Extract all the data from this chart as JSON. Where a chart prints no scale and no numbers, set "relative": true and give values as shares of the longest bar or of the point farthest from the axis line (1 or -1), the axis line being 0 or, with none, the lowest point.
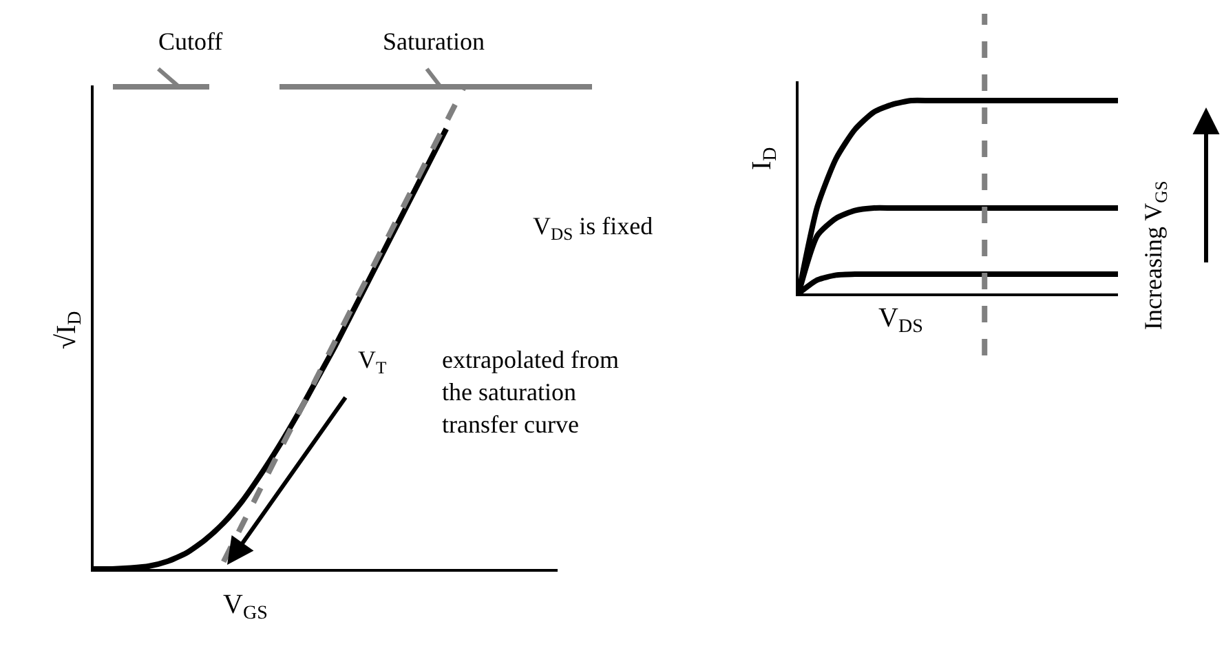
{
  "chart_data": [
    {
      "type": "line",
      "relative": true,
      "xlabel": "V$_{GS}$",
      "ylabel": "√I$_{D}$",
      "marker": "none",
      "categories": [
        null,
        null,
        null,
        null,
        null,
        null,
        null,
        null,
        null,
        null,
        null,
        null,
        null,
        null,
        null,
        null,
        null,
        null,
        null,
        null,
        null,
        null,
        null,
        null,
        null,
        null
      ],
      "series": [
        {
          "color": "#000000",
          "line_style": "solid",
          "values": [
            0,
            0,
            0.002,
            0.006,
            0.016,
            0.033,
            0.06,
            0.095,
            0.14,
            0.195,
            0.255,
            0.32,
            0.39,
            0.46,
            0.535,
            0.61,
            0.685,
            0.76,
            0.835,
            0.91,
            null,
            null,
            null,
            null,
            null,
            null
          ]
        },
        {
          "color": "#808080",
          "line_style": "dashed",
          "values": [
            null,
            null,
            null,
            null,
            null,
            null,
            null,
            0.015,
            0.091,
            0.167,
            0.243,
            0.318,
            0.394,
            0.47,
            0.546,
            0.621,
            0.697,
            0.773,
            0.849,
            0.924,
            1.0,
            null,
            null,
            null,
            null,
            null
          ]
        }
      ],
      "annotations": [
        "Cutoff",
        "Saturation",
        "V$_{DS}$ is fixed",
        "V$_{T}$",
        "extrapolated from\nthe saturation\ntransfer curve"
      ]
    },
    {
      "type": "line",
      "relative": true,
      "xlabel": "V$_{DS}$",
      "ylabel": "I$_{D}$",
      "marker": "none",
      "categories": [
        null,
        null,
        null,
        null,
        null,
        null,
        null,
        null,
        null,
        null,
        null,
        null,
        null,
        null,
        null,
        null,
        null,
        null
      ],
      "series": [
        {
          "color": "#000000",
          "values": [
            0,
            0.45,
            0.7,
            0.85,
            0.94,
            0.98,
            1.0,
            1.0,
            1.0,
            1.0,
            1.0,
            1.0,
            1.0,
            1.0,
            1.0,
            1.0,
            1.0,
            1.0
          ]
        },
        {
          "color": "#000000",
          "values": [
            0,
            0.3,
            0.39,
            0.43,
            0.443,
            0.443,
            0.443,
            0.443,
            0.443,
            0.443,
            0.443,
            0.443,
            0.443,
            0.443,
            0.443,
            0.443,
            0.443,
            0.443
          ]
        },
        {
          "color": "#000000",
          "values": [
            0,
            0.07,
            0.095,
            0.1,
            0.1,
            0.1,
            0.1,
            0.1,
            0.1,
            0.1,
            0.1,
            0.1,
            0.1,
            0.1,
            0.1,
            0.1,
            0.1,
            0.1
          ]
        }
      ],
      "annotations": [
        "Increasing V$_{GS}$"
      ]
    }
  ]
}
